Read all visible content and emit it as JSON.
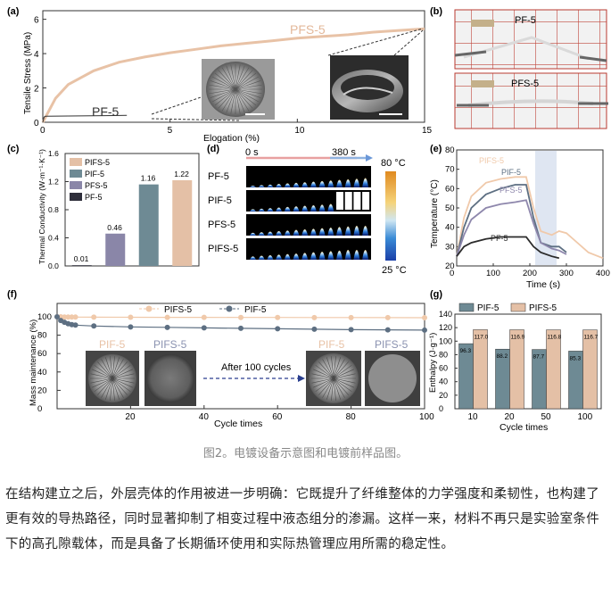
{
  "figure": {
    "panel_labels": {
      "a": "(a)",
      "b": "(b)",
      "c": "(c)",
      "d": "(d)",
      "e": "(e)",
      "f": "(f)",
      "g": "(g)"
    },
    "caption": "图2。电镀设备示意图和电镀前样品图。"
  },
  "colors": {
    "pfs": "#e8c2a6",
    "pif": "#7a8f9b",
    "pifs_bar": "#e4c0a6",
    "pif_bar": "#6e8a94",
    "pfs_bar": "#8a86a8",
    "pf_bar": "#2e2e3a",
    "pif5": "#5d6f82",
    "pifs5": "#f0c9aa"
  },
  "panel_a": {
    "ylabel": "Tensile Stress (MPa)",
    "xlabel": "Elogation (%)",
    "xticks": [
      "0",
      "5",
      "10",
      "15"
    ],
    "yticks": [
      "0",
      "2",
      "4",
      "6"
    ],
    "label_pfs": "PFS-5",
    "label_pf": "PF-5"
  },
  "panel_b": {
    "label_top": "PF-5",
    "label_bottom": "PFS-5"
  },
  "chart_data": [
    {
      "type": "line",
      "panel": "a",
      "xlabel": "Elogation (%)",
      "ylabel": "Tensile Stress (MPa)",
      "xlim": [
        0,
        15
      ],
      "ylim": [
        0,
        6.5
      ],
      "series": [
        {
          "name": "PFS-5",
          "x": [
            0,
            0.5,
            1,
            2,
            3,
            4,
            5,
            6,
            7,
            8,
            9,
            10,
            11,
            12,
            13,
            14,
            15
          ],
          "y": [
            0,
            1.4,
            2.2,
            3.0,
            3.5,
            3.8,
            4.05,
            4.25,
            4.45,
            4.6,
            4.75,
            4.9,
            5.0,
            5.1,
            5.25,
            5.35,
            5.45
          ]
        },
        {
          "name": "PF-5",
          "x": [
            0,
            0.05,
            0.1,
            3.3
          ],
          "y": [
            0,
            0.3,
            0.35,
            0.4
          ]
        }
      ]
    },
    {
      "type": "bar",
      "panel": "c",
      "ylabel": "Thermal Conductivity (W·m⁻¹·K⁻¹)",
      "ylim": [
        0,
        1.6
      ],
      "yticks": [
        "0.0",
        "0.4",
        "0.8",
        "1.2",
        "1.6"
      ],
      "legend": [
        "PIFS-5",
        "PIF-5",
        "PFS-5",
        "PF-5"
      ],
      "categories": [
        "PF-5",
        "PFS-5",
        "PIF-5",
        "PIFS-5"
      ],
      "values": [
        0.01,
        0.46,
        1.16,
        1.22
      ],
      "labels": [
        "0.01",
        "0.46",
        "1.16",
        "1.22"
      ]
    },
    {
      "type": "line",
      "panel": "e",
      "xlabel": "Time (s)",
      "ylabel": "Temperature (°C)",
      "xlim": [
        0,
        400
      ],
      "ylim": [
        20,
        80
      ],
      "xticks": [
        "0",
        "100",
        "200",
        "300",
        "400"
      ],
      "yticks": [
        "20",
        "30",
        "40",
        "50",
        "60",
        "70",
        "80"
      ],
      "series": [
        {
          "name": "PIFS-5",
          "x": [
            0,
            20,
            40,
            80,
            120,
            160,
            190,
            210,
            230,
            260,
            280,
            300,
            330,
            360,
            400
          ],
          "y": [
            25,
            45,
            56,
            63,
            65,
            66,
            66,
            50,
            38,
            36,
            38,
            37,
            32,
            27,
            24
          ]
        },
        {
          "name": "PIF-5",
          "x": [
            0,
            20,
            40,
            80,
            120,
            160,
            190,
            210,
            230,
            260,
            280,
            300
          ],
          "y": [
            25,
            40,
            50,
            57,
            60,
            62,
            62,
            45,
            32,
            30,
            30,
            27
          ]
        },
        {
          "name": "PFS-5",
          "x": [
            0,
            20,
            40,
            80,
            120,
            160,
            190,
            210,
            230,
            260,
            280,
            300
          ],
          "y": [
            25,
            36,
            44,
            50,
            52,
            53,
            54,
            42,
            32,
            29,
            28,
            26
          ]
        },
        {
          "name": "PF-5",
          "x": [
            0,
            20,
            40,
            80,
            120,
            160,
            190,
            210,
            230,
            260,
            280
          ],
          "y": [
            25,
            30,
            32,
            34,
            35,
            35,
            35,
            30,
            27,
            25,
            24
          ]
        }
      ]
    },
    {
      "type": "line",
      "panel": "f",
      "xlabel": "Cycle times",
      "ylabel": "Mass maintenance (%)",
      "xlim": [
        0,
        100
      ],
      "ylim": [
        0,
        100
      ],
      "xticks": [
        "20",
        "40",
        "60",
        "80",
        "100"
      ],
      "yticks": [
        "0",
        "20",
        "40",
        "60",
        "80",
        "100"
      ],
      "series": [
        {
          "name": "PIFS-5",
          "x": [
            0,
            1,
            2,
            3,
            4,
            5,
            10,
            20,
            30,
            40,
            50,
            60,
            70,
            80,
            90,
            100
          ],
          "y": [
            100,
            100,
            99.8,
            99.8,
            99.7,
            99.7,
            99.6,
            99.5,
            99.4,
            99.4,
            99.3,
            99.3,
            99.2,
            99.2,
            99.1,
            99.0
          ]
        },
        {
          "name": "PIF-5",
          "x": [
            0,
            1,
            2,
            3,
            4,
            5,
            10,
            20,
            30,
            40,
            50,
            60,
            70,
            80,
            90,
            100
          ],
          "y": [
            100,
            96,
            94,
            92.5,
            91.5,
            91,
            90,
            89,
            88.5,
            88,
            87.5,
            87,
            86.5,
            86,
            85.8,
            85.5
          ]
        }
      ]
    },
    {
      "type": "bar",
      "panel": "g",
      "xlabel": "Cycle times",
      "ylabel": "Enthalpy (J·g⁻¹)",
      "ylim": [
        0,
        140
      ],
      "yticks": [
        "0",
        "20",
        "40",
        "60",
        "80",
        "100",
        "120",
        "140"
      ],
      "categories": [
        "10",
        "20",
        "50",
        "100"
      ],
      "series": [
        {
          "name": "PIF-5",
          "values": [
            96.3,
            88.2,
            87.7,
            85.3
          ],
          "labels": [
            "96.3",
            "88.2",
            "87.7",
            "85.3"
          ]
        },
        {
          "name": "PIFS-5",
          "values": [
            117.0,
            116.9,
            116.8,
            116.7
          ],
          "labels": [
            "117.0",
            "116.9",
            "116.8",
            "116.7"
          ]
        }
      ]
    }
  ],
  "panel_c": {
    "ylabel": "Thermal Conductivity (W·m⁻¹·K⁻¹)"
  },
  "panel_d": {
    "time_start": "0 s",
    "time_end": "380 s",
    "rows": [
      "PF-5",
      "PIF-5",
      "PFS-5",
      "PIFS-5"
    ],
    "scale_max": "80 °C",
    "scale_min": "25 °C"
  },
  "panel_f": {
    "legend": [
      "PIFS-5",
      "PIF-5"
    ],
    "img_labels": [
      "PIF-5",
      "PIFS-5",
      "PIF-5",
      "PIFS-5"
    ],
    "arrow_label": "After  100 cycles"
  },
  "body": {
    "paragraph": "在结构建立之后，外层壳体的作用被进一步明确：它既提升了纤维整体的力学强度和柔韧性，也构建了更有效的导热路径，同时显著抑制了相变过程中液态组分的渗漏。这样一来，材料不再只是实验室条件下的高孔隙载体，而是具备了长期循环使用和实际热管理应用所需的稳定性。"
  }
}
